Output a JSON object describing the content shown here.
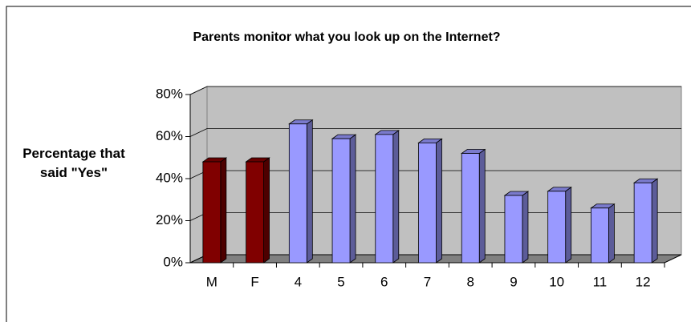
{
  "chart_data": {
    "type": "bar3d",
    "title": "Parents monitor what you look up on the Internet?",
    "ylabel": "Percentage that said \"Yes\"",
    "categories": [
      "M",
      "F",
      "4",
      "5",
      "6",
      "7",
      "8",
      "9",
      "10",
      "11",
      "12"
    ],
    "values": [
      48,
      48,
      66,
      59,
      61,
      57,
      52,
      32,
      34,
      26,
      38
    ],
    "colors": [
      "#800000",
      "#800000",
      "#9999ff",
      "#9999ff",
      "#9999ff",
      "#9999ff",
      "#9999ff",
      "#9999ff",
      "#9999ff",
      "#9999ff",
      "#9999ff"
    ],
    "ylim": [
      0,
      80
    ],
    "yticks": [
      {
        "value": 0,
        "label": "0%"
      },
      {
        "value": 20,
        "label": "20%"
      },
      {
        "value": 40,
        "label": "40%"
      },
      {
        "value": 60,
        "label": "60%"
      },
      {
        "value": 80,
        "label": "80%"
      }
    ],
    "grid": true
  }
}
